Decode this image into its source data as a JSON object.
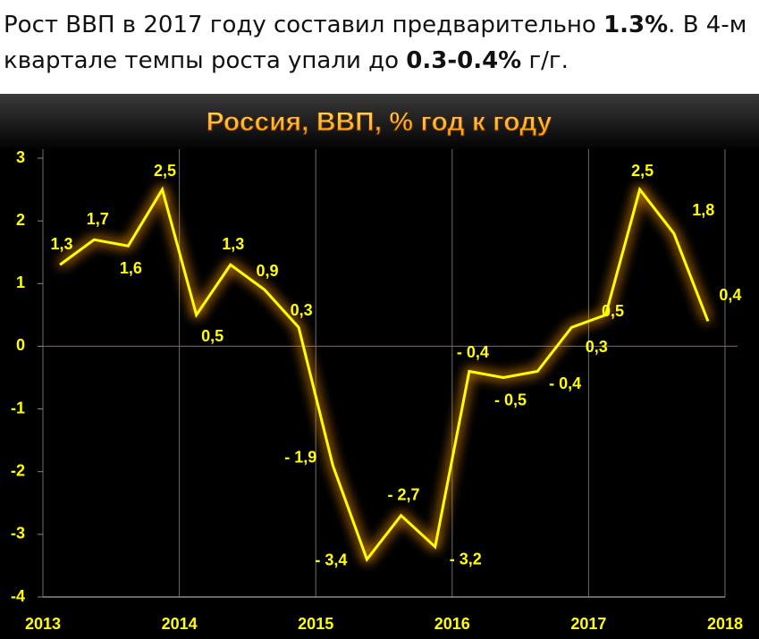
{
  "header": {
    "lines": [
      [
        {
          "text": "Рост ВВП в 2017 году составил предварительно ",
          "bold": false
        },
        {
          "text": "1.3%",
          "bold": true
        },
        {
          "text": ". В 4-м",
          "bold": false
        }
      ],
      [
        {
          "text": "квартале темпы роста упали до ",
          "bold": false
        },
        {
          "text": "0.3-0.4%",
          "bold": true
        },
        {
          "text": " г/г.",
          "bold": false
        }
      ]
    ]
  },
  "chart_data": {
    "type": "line",
    "title": "Россия, ВВП, % год к году",
    "x": [
      2013.125,
      2013.375,
      2013.625,
      2013.875,
      2014.125,
      2014.375,
      2014.625,
      2014.875,
      2015.125,
      2015.375,
      2015.625,
      2015.875,
      2016.125,
      2016.375,
      2016.625,
      2016.875,
      2017.125,
      2017.375,
      2017.625,
      2017.875
    ],
    "series": [
      {
        "name": "ВВП",
        "color": "#ffff00",
        "values": [
          1.3,
          1.7,
          1.6,
          2.5,
          0.5,
          1.3,
          0.9,
          0.3,
          -1.9,
          -3.4,
          -2.7,
          -3.2,
          -0.4,
          -0.5,
          -0.4,
          0.3,
          0.5,
          2.5,
          1.8,
          0.4
        ],
        "value_labels": [
          "1,3",
          "1,7",
          "1,6",
          "2,5",
          "0,5",
          "1,3",
          "0,9",
          "0,3",
          "- 1,9",
          "- 3,4",
          "- 2,7",
          "- 3,2",
          "- 0,4",
          "- 0,5",
          "- 0,4",
          "0,3",
          "0,5",
          "2,5",
          "1,8",
          "0,4"
        ]
      }
    ],
    "xlim": [
      2013,
      2018
    ],
    "xticks": [
      2013,
      2014,
      2015,
      2016,
      2017,
      2018
    ],
    "ylim": [
      -4,
      3
    ],
    "yticks": [
      3,
      2,
      1,
      0,
      -1,
      -2,
      -3,
      -4
    ],
    "grid": true,
    "zero_line_color": "#c0504d"
  }
}
